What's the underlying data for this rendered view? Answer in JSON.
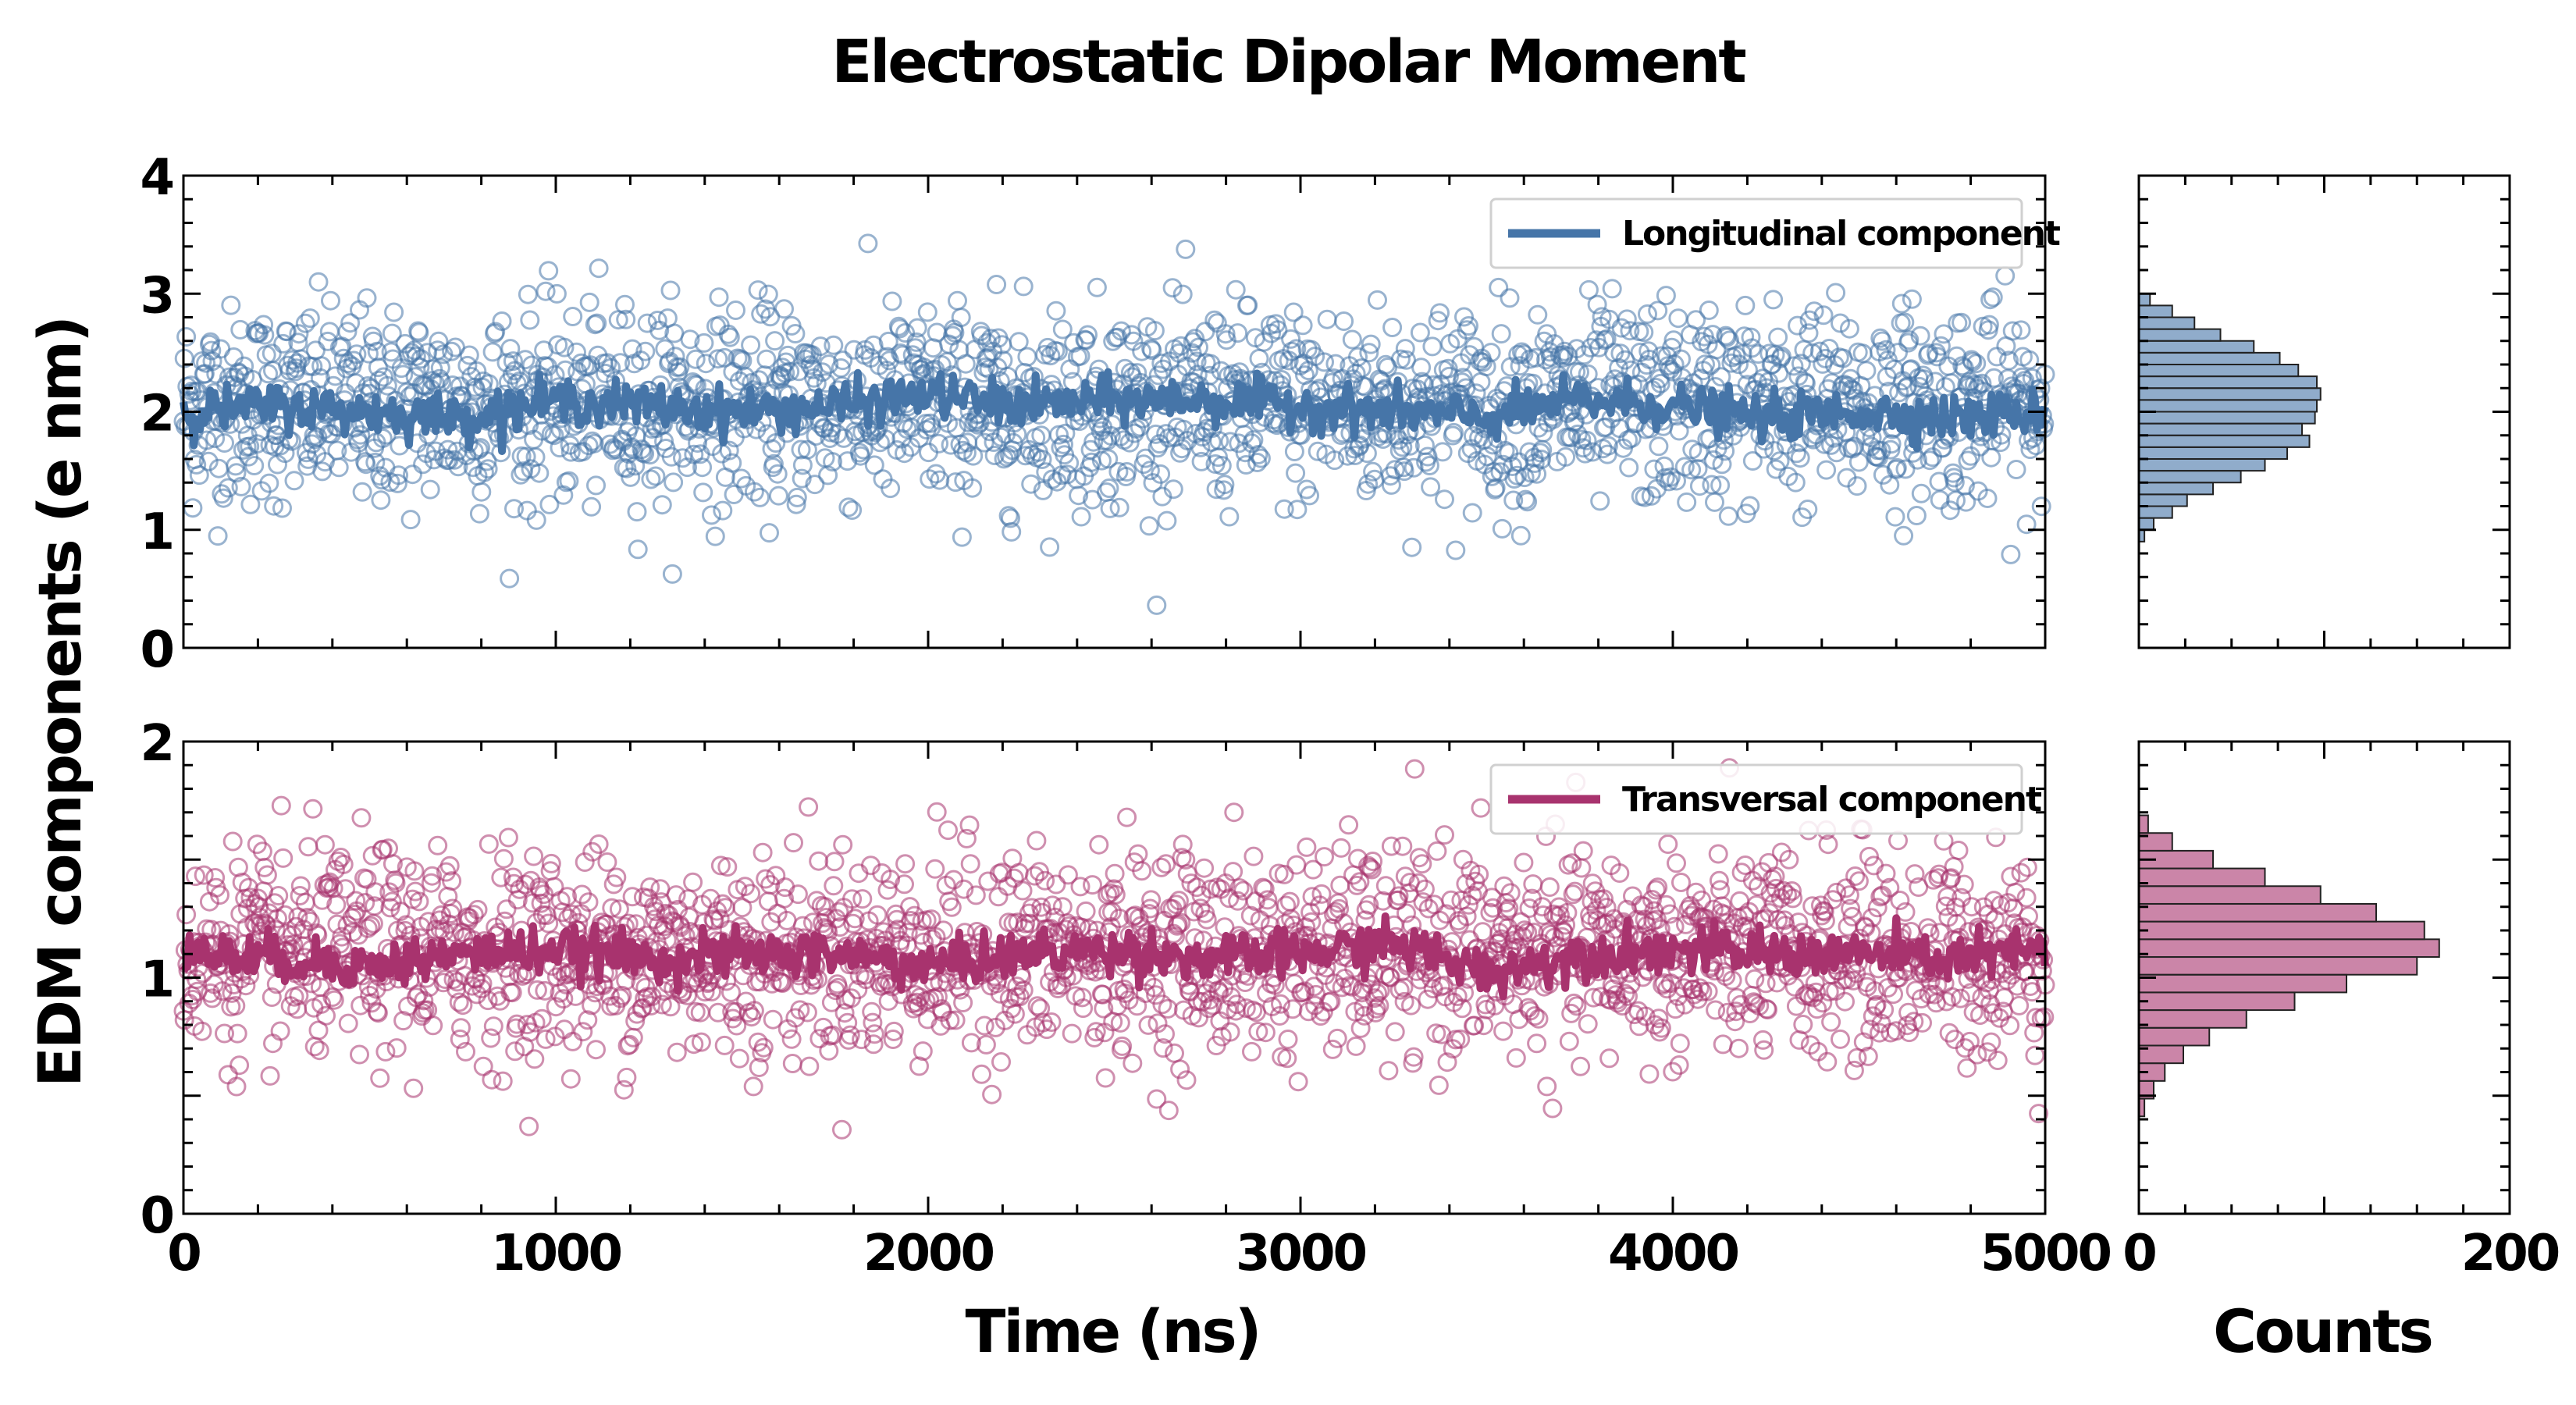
{
  "figure": {
    "title": "Electrostatic Dipolar Moment"
  },
  "chart_data": [
    {
      "type": "scatter",
      "panel": "top-time-series",
      "xlabel": "",
      "ylabel": "EDM components (e nm)",
      "xlim": [
        0,
        5000
      ],
      "ylim": [
        0,
        4
      ],
      "xticks": [
        0,
        1000,
        2000,
        3000,
        4000,
        5000
      ],
      "yticks": [
        0,
        1,
        2,
        3,
        4
      ],
      "ytick_labels": [
        "0",
        "1",
        "2",
        "3",
        "4"
      ],
      "legend": "top-right",
      "series": [
        {
          "name": "Longitudinal component",
          "color": "#4675a8",
          "marker": "open-circle",
          "n_points": 2000,
          "x_range": [
            0,
            5000
          ],
          "mean": 2.05,
          "std": 0.42,
          "running_mean": {
            "x": [
              0,
              250,
              500,
              750,
              1000,
              1250,
              1500,
              1750,
              2000,
              2250,
              2500,
              2750,
              3000,
              3250,
              3500,
              3750,
              4000,
              4250,
              4500,
              4750,
              5000
            ],
            "y": [
              2.0,
              2.05,
              2.0,
              1.95,
              2.1,
              2.05,
              2.0,
              2.05,
              2.15,
              2.05,
              2.1,
              2.1,
              2.05,
              2.0,
              1.95,
              2.1,
              2.05,
              1.95,
              2.0,
              1.95,
              2.0
            ]
          }
        }
      ]
    },
    {
      "type": "scatter",
      "panel": "bottom-time-series",
      "xlabel": "Time (ns)",
      "ylabel": "EDM components (e nm)",
      "xlim": [
        0,
        5000
      ],
      "ylim": [
        0,
        2
      ],
      "xticks": [
        0,
        1000,
        2000,
        3000,
        4000,
        5000
      ],
      "xtick_labels": [
        "0",
        "1000",
        "2000",
        "3000",
        "4000",
        "5000"
      ],
      "yticks": [
        0,
        1,
        2
      ],
      "ytick_labels": [
        "0",
        "1",
        "2"
      ],
      "legend": "top-right",
      "series": [
        {
          "name": "Transversal component",
          "color": "#a8336e",
          "marker": "open-circle",
          "n_points": 2000,
          "x_range": [
            0,
            5000
          ],
          "mean": 1.1,
          "std": 0.22,
          "running_mean": {
            "x": [
              0,
              250,
              500,
              750,
              1000,
              1250,
              1500,
              1750,
              2000,
              2250,
              2500,
              2750,
              3000,
              3250,
              3500,
              3750,
              4000,
              4250,
              4500,
              4750,
              5000
            ],
            "y": [
              1.1,
              1.08,
              1.05,
              1.1,
              1.12,
              1.08,
              1.1,
              1.1,
              1.05,
              1.1,
              1.12,
              1.08,
              1.1,
              1.15,
              1.02,
              1.1,
              1.12,
              1.1,
              1.1,
              1.08,
              1.12
            ]
          }
        }
      ]
    },
    {
      "type": "bar",
      "panel": "top-histogram",
      "orientation": "horizontal",
      "xlabel": "",
      "xlim": [
        0,
        200
      ],
      "ylim": [
        0,
        4
      ],
      "color": "#4675a8",
      "bins": {
        "y_center": [
          0.95,
          1.05,
          1.15,
          1.25,
          1.35,
          1.45,
          1.55,
          1.65,
          1.75,
          1.85,
          1.95,
          2.05,
          2.15,
          2.25,
          2.35,
          2.45,
          2.55,
          2.65,
          2.75,
          2.85,
          2.95
        ],
        "counts": [
          3,
          8,
          18,
          26,
          40,
          55,
          68,
          80,
          92,
          88,
          95,
          96,
          98,
          96,
          86,
          76,
          62,
          44,
          30,
          18,
          6
        ]
      }
    },
    {
      "type": "bar",
      "panel": "bottom-histogram",
      "orientation": "horizontal",
      "xlabel": "Counts",
      "xlim": [
        0,
        200
      ],
      "xticks": [
        0,
        200
      ],
      "xtick_labels": [
        "0",
        "200"
      ],
      "ylim": [
        0,
        2
      ],
      "color": "#a8336e",
      "bins": {
        "y_center": [
          0.45,
          0.525,
          0.6,
          0.675,
          0.75,
          0.825,
          0.9,
          0.975,
          1.05,
          1.125,
          1.2,
          1.275,
          1.35,
          1.425,
          1.5,
          1.575,
          1.65
        ],
        "counts": [
          3,
          8,
          14,
          24,
          38,
          58,
          84,
          112,
          150,
          162,
          154,
          128,
          98,
          68,
          40,
          18,
          5
        ]
      }
    }
  ]
}
